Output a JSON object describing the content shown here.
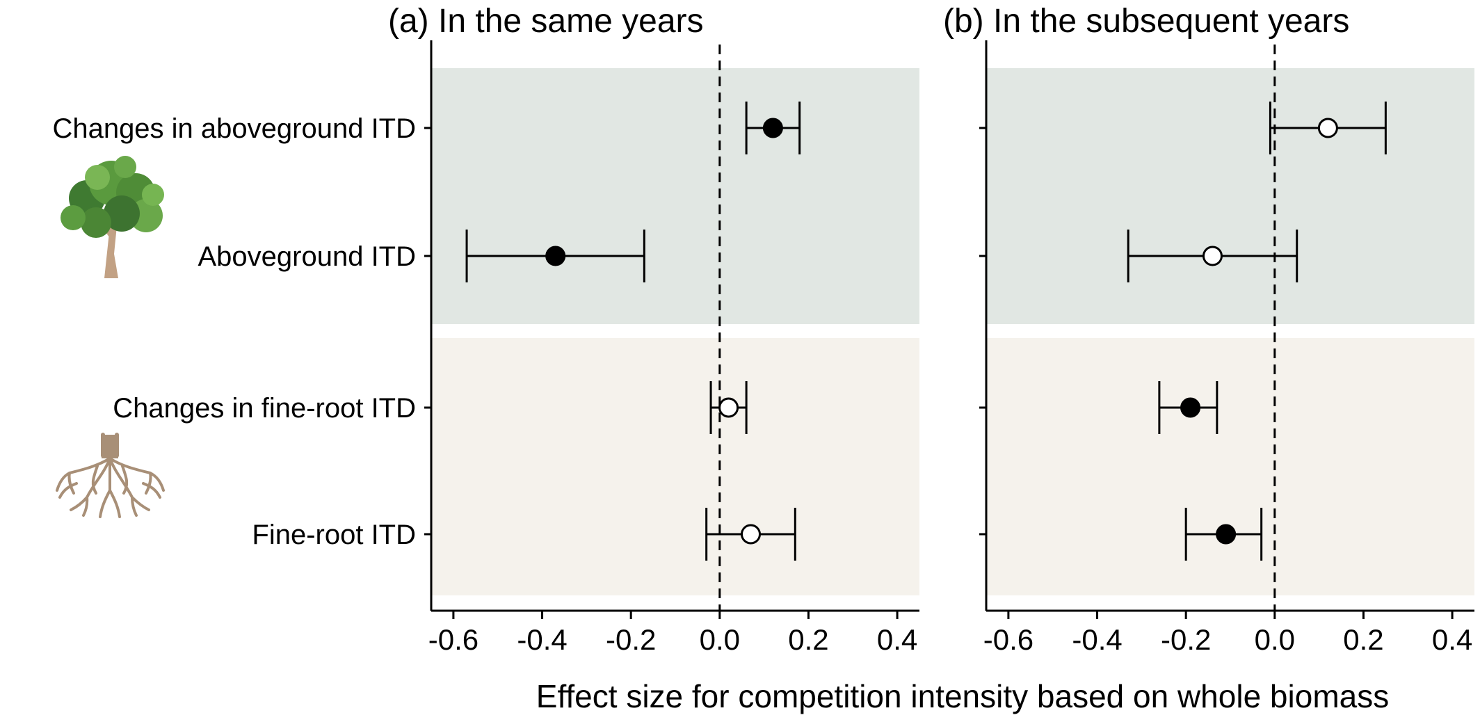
{
  "chart_data": {
    "type": "forest",
    "xlabel": "Effect size for competition intensity based on whole biomass",
    "xlim": [
      -0.65,
      0.45
    ],
    "xticks": [
      -0.6,
      -0.4,
      -0.2,
      0.0,
      0.2,
      0.4
    ],
    "xtick_labels": [
      "-0.6",
      "-0.4",
      "-0.2",
      "0.0",
      "0.2",
      "0.4"
    ],
    "reference_line": 0.0,
    "categories": [
      "Changes in aboveground ITD",
      "Aboveground ITD",
      "Changes in fine-root ITD",
      "Fine-root ITD"
    ],
    "groups": [
      {
        "rows": [
          0,
          1
        ],
        "icon": "tree-icon",
        "color": "#e1e7e3"
      },
      {
        "rows": [
          2,
          3
        ],
        "icon": "roots-icon",
        "color": "#f5f2ec"
      }
    ],
    "panels": [
      {
        "title": "(a) In the same years",
        "points": [
          {
            "estimate": 0.12,
            "lower": 0.06,
            "upper": 0.18,
            "significant": true
          },
          {
            "estimate": -0.37,
            "lower": -0.57,
            "upper": -0.17,
            "significant": true
          },
          {
            "estimate": 0.02,
            "lower": -0.02,
            "upper": 0.06,
            "significant": false
          },
          {
            "estimate": 0.07,
            "lower": -0.03,
            "upper": 0.17,
            "significant": false
          }
        ]
      },
      {
        "title": "(b) In the subsequent years",
        "points": [
          {
            "estimate": 0.12,
            "lower": -0.01,
            "upper": 0.25,
            "significant": false
          },
          {
            "estimate": -0.14,
            "lower": -0.33,
            "upper": 0.05,
            "significant": false
          },
          {
            "estimate": -0.19,
            "lower": -0.26,
            "upper": -0.13,
            "significant": true
          },
          {
            "estimate": -0.11,
            "lower": -0.2,
            "upper": -0.03,
            "significant": true
          }
        ]
      }
    ]
  }
}
